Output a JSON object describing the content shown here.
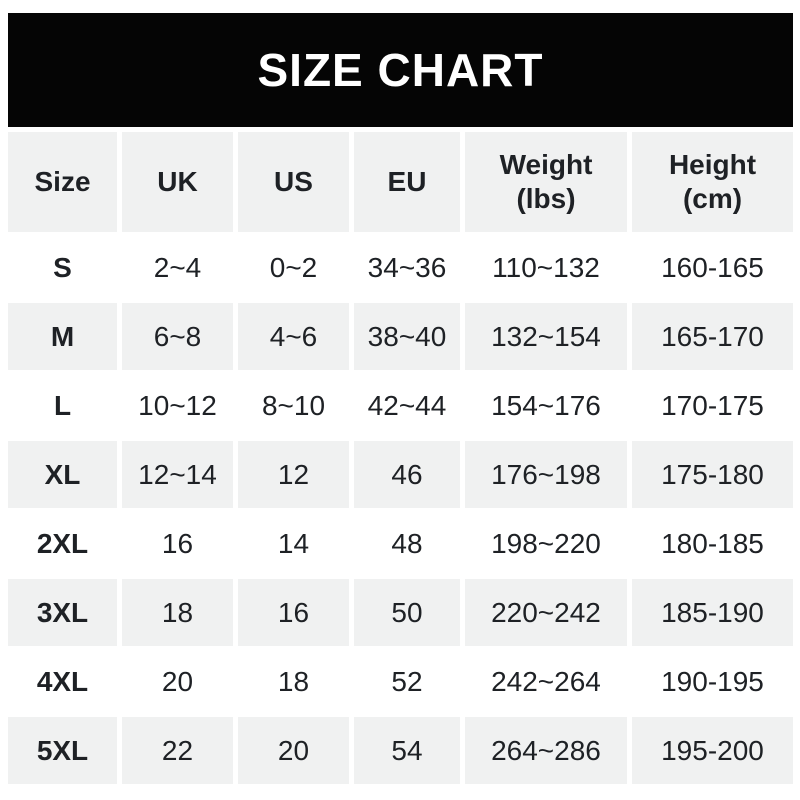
{
  "banner": {
    "title": "SIZE CHART"
  },
  "colors": {
    "banner_bg": "#050505",
    "banner_text": "#ffffff",
    "header_row_bg": "#f0f1f1",
    "alt_row_bg": "#f0f1f1",
    "row_bg": "#ffffff",
    "text": "#1e2125"
  },
  "chart_data": {
    "type": "table",
    "title": "SIZE CHART",
    "columns": [
      {
        "label": "Size",
        "sub": ""
      },
      {
        "label": "UK",
        "sub": ""
      },
      {
        "label": "US",
        "sub": ""
      },
      {
        "label": "EU",
        "sub": ""
      },
      {
        "label": "Weight",
        "sub": "(lbs)"
      },
      {
        "label": "Height",
        "sub": "(cm)"
      }
    ],
    "rows": [
      [
        "S",
        "2~4",
        "0~2",
        "34~36",
        "110~132",
        "160-165"
      ],
      [
        "M",
        "6~8",
        "4~6",
        "38~40",
        "132~154",
        "165-170"
      ],
      [
        "L",
        "10~12",
        "8~10",
        "42~44",
        "154~176",
        "170-175"
      ],
      [
        "XL",
        "12~14",
        "12",
        "46",
        "176~198",
        "175-180"
      ],
      [
        "2XL",
        "16",
        "14",
        "48",
        "198~220",
        "180-185"
      ],
      [
        "3XL",
        "18",
        "16",
        "50",
        "220~242",
        "185-190"
      ],
      [
        "4XL",
        "20",
        "18",
        "52",
        "242~264",
        "190-195"
      ],
      [
        "5XL",
        "22",
        "20",
        "54",
        "264~286",
        "195-200"
      ]
    ]
  }
}
